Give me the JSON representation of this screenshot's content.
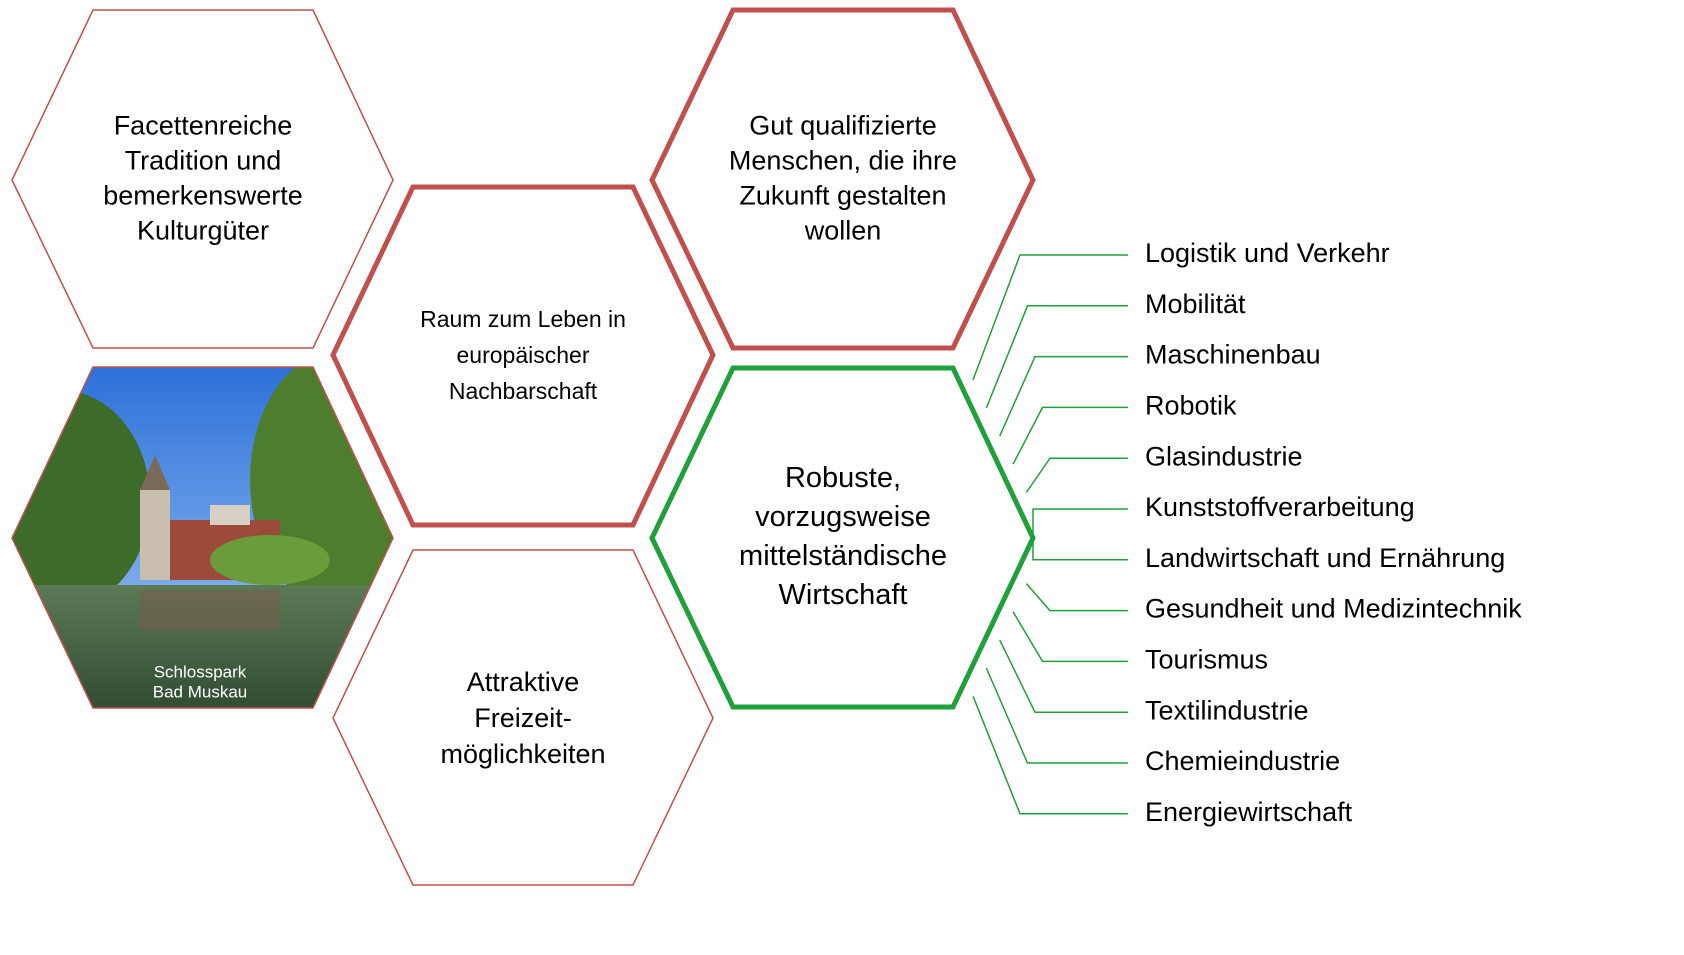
{
  "hexagons": [
    {
      "lines": [
        "Facettenreiche",
        "Tradition und",
        "bemerkenswerte",
        "Kulturgüter"
      ]
    },
    {
      "lines": [
        "Raum zum Leben in",
        "europäischer",
        "Nachbarschaft"
      ]
    },
    {
      "lines": [
        "Gut qualifizierte",
        "Menschen, die ihre",
        "Zukunft gestalten",
        "wollen"
      ]
    },
    {
      "lines": [
        "Attraktive",
        "Freizeit-",
        "möglichkeiten"
      ]
    },
    {
      "lines": [
        "Robuste,",
        "vorzugsweise",
        "mittelständische",
        "Wirtschaft"
      ]
    }
  ],
  "photo": {
    "caption": [
      "Schlosspark",
      "Bad Muskau"
    ]
  },
  "sectors": [
    "Logistik und Verkehr",
    "Mobilität",
    "Maschinenbau",
    "Robotik",
    "Glasindustrie",
    "Kunststoffverarbeitung",
    "Landwirtschaft und Ernährung",
    "Gesundheit und Medizintechnik",
    "Tourismus",
    "Textilindustrie",
    "Chemieindustrie",
    "Energiewirtschaft"
  ]
}
